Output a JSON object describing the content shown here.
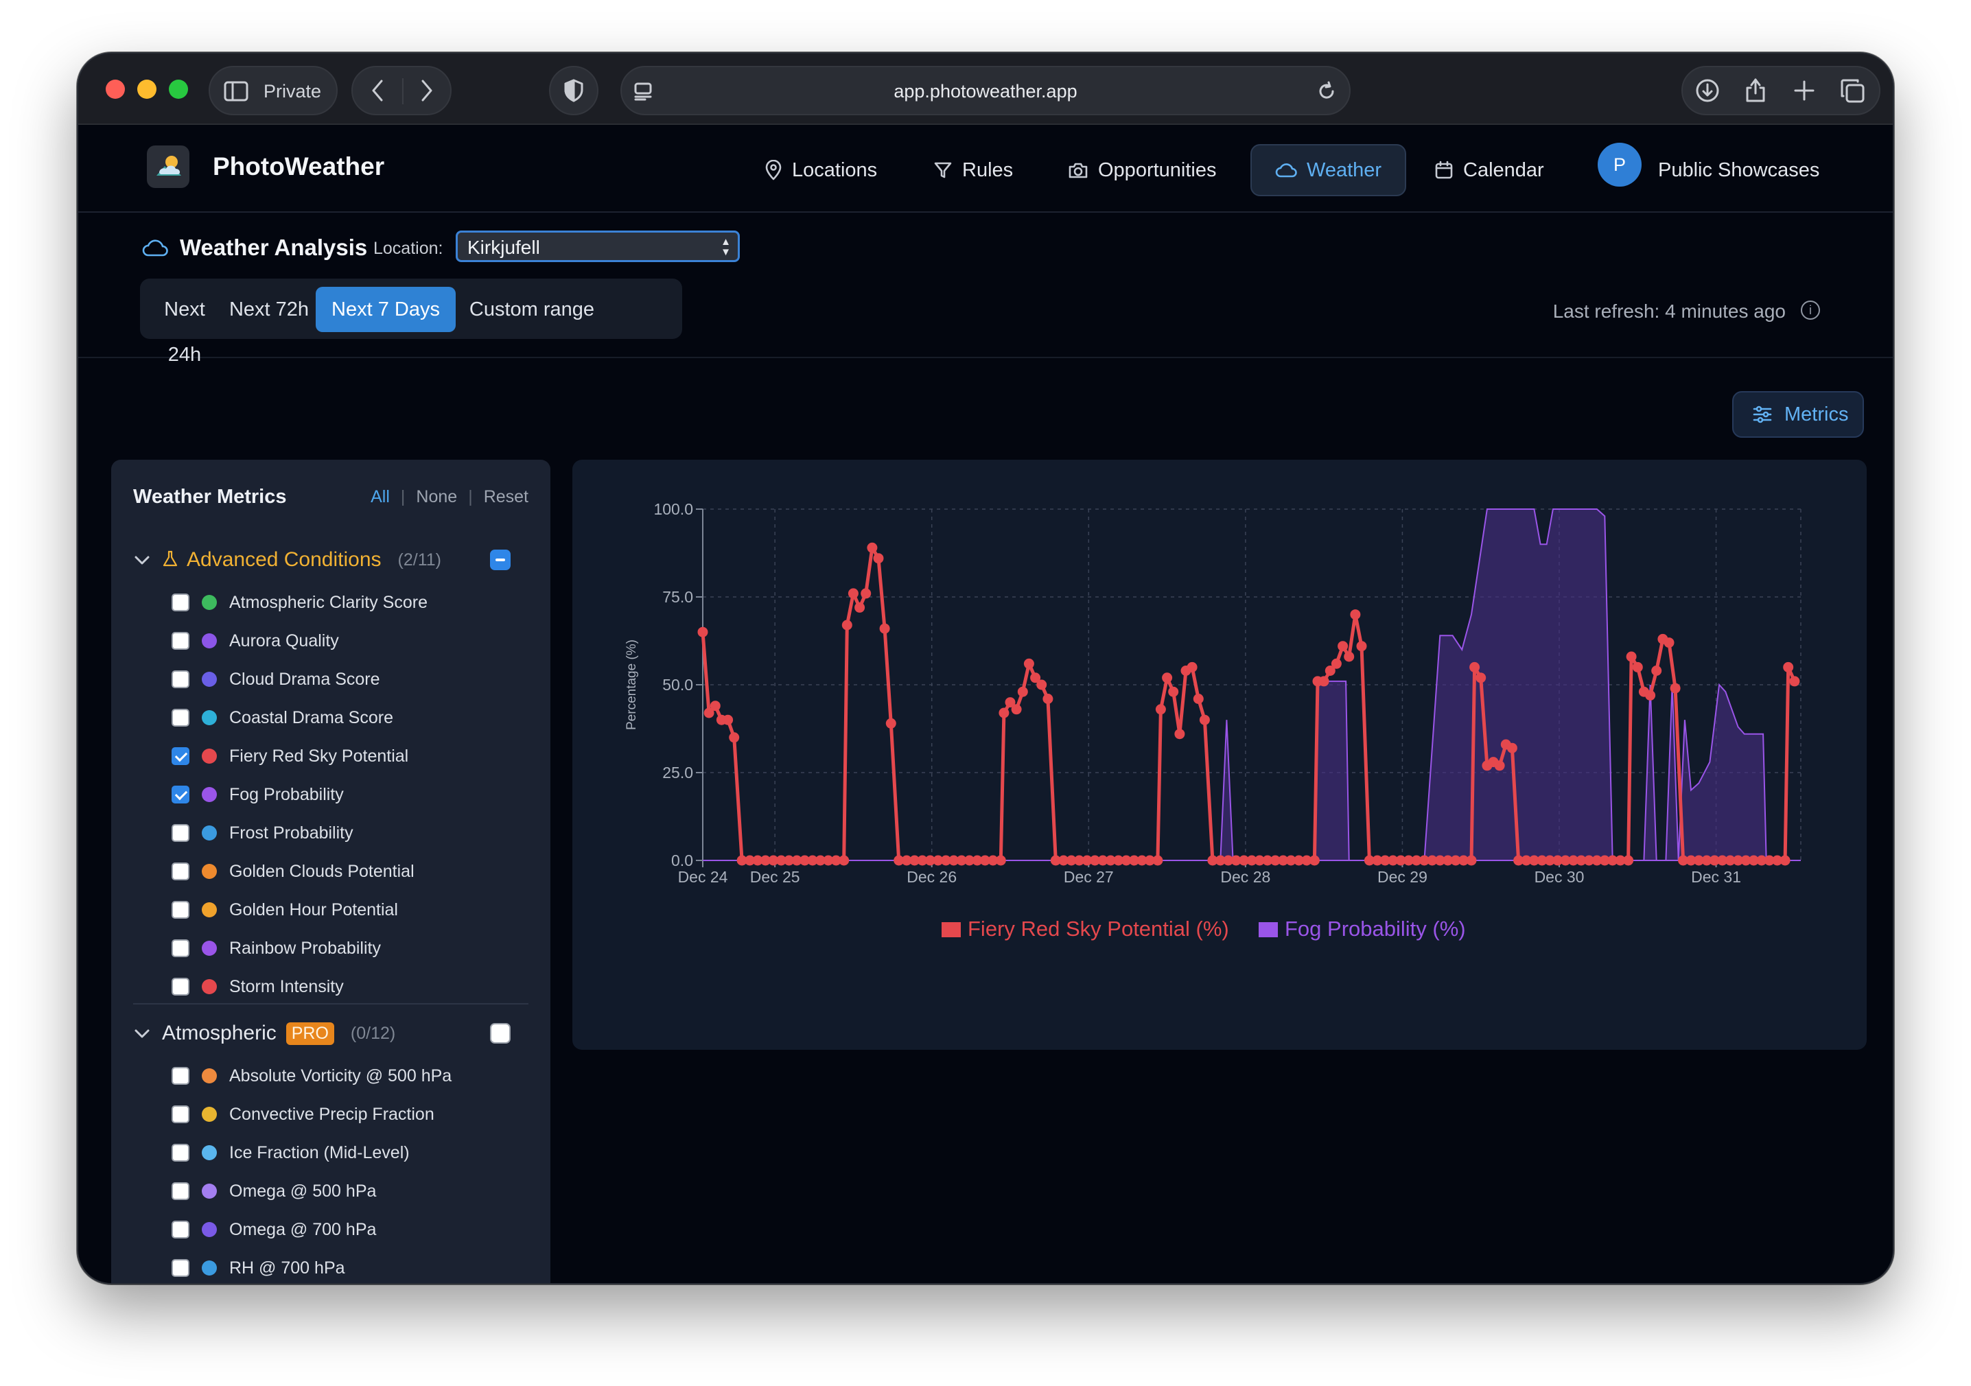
{
  "browser": {
    "private_label": "Private",
    "url": "app.photoweather.app"
  },
  "app": {
    "brand": "PhotoWeather",
    "nav": [
      {
        "label": "Locations",
        "icon": "map-pin-icon"
      },
      {
        "label": "Rules",
        "icon": "filter-icon"
      },
      {
        "label": "Opportunities",
        "icon": "camera-icon"
      },
      {
        "label": "Weather",
        "icon": "cloud-icon",
        "active": true
      },
      {
        "label": "Calendar",
        "icon": "calendar-icon"
      },
      {
        "label": "Public Showcases",
        "icon": "avatar",
        "avatar_letter": "P"
      }
    ]
  },
  "analysis": {
    "title": "Weather Analysis",
    "location_label": "Location:",
    "location_value": "Kirkjufell",
    "ranges": [
      "Next 24h",
      "Next 72h",
      "Next 7 Days",
      "Custom range"
    ],
    "active_range": "Next 7 Days",
    "last_refresh": "Last refresh: 4 minutes ago"
  },
  "metrics_button": "Metrics",
  "sidebar": {
    "title": "Weather Metrics",
    "links": [
      "All",
      "None",
      "Reset"
    ],
    "groups": [
      {
        "title": "Advanced Conditions",
        "count": "(2/11)",
        "color": "#f2b233",
        "badge": "",
        "items": [
          {
            "label": "Atmospheric Clarity Score",
            "color": "#3dbb5e",
            "checked": false
          },
          {
            "label": "Aurora Quality",
            "color": "#8c56e8",
            "checked": false
          },
          {
            "label": "Cloud Drama Score",
            "color": "#6a5fe6",
            "checked": false
          },
          {
            "label": "Coastal Drama Score",
            "color": "#2eb0d8",
            "checked": false
          },
          {
            "label": "Fiery Red Sky Potential",
            "color": "#e5484d",
            "checked": true
          },
          {
            "label": "Fog Probability",
            "color": "#9a55e8",
            "checked": true
          },
          {
            "label": "Frost Probability",
            "color": "#3b9be0",
            "checked": false
          },
          {
            "label": "Golden Clouds Potential",
            "color": "#ee8a2e",
            "checked": false
          },
          {
            "label": "Golden Hour Potential",
            "color": "#f0a22c",
            "checked": false
          },
          {
            "label": "Rainbow Probability",
            "color": "#9a55e8",
            "checked": false
          },
          {
            "label": "Storm Intensity",
            "color": "#e5484d",
            "checked": false
          }
        ]
      },
      {
        "title": "Atmospheric",
        "count": "(0/12)",
        "color": "#e6e9ef",
        "badge": "PRO",
        "items": [
          {
            "label": "Absolute Vorticity @ 500 hPa",
            "color": "#ee8a3e",
            "checked": false
          },
          {
            "label": "Convective Precip Fraction",
            "color": "#e8b530",
            "checked": false
          },
          {
            "label": "Ice Fraction (Mid-Level)",
            "color": "#5ab6ee",
            "checked": false
          },
          {
            "label": "Omega @ 500 hPa",
            "color": "#a37ef0",
            "checked": false
          },
          {
            "label": "Omega @ 700 hPa",
            "color": "#7a5ae6",
            "checked": false
          },
          {
            "label": "RH @ 700 hPa",
            "color": "#3b9be0",
            "checked": false
          }
        ]
      }
    ]
  },
  "chart_data": {
    "type": "line",
    "ylabel": "Percentage (%)",
    "xlabel": "",
    "ylim": [
      0,
      100
    ],
    "yticks": [
      "0.0",
      "25.0",
      "50.0",
      "75.0",
      "100.0"
    ],
    "xlim": [
      0,
      7
    ],
    "xticks": [
      {
        "x": 0,
        "label": "Dec 24"
      },
      {
        "x": 0.46,
        "label": "Dec 25"
      },
      {
        "x": 1.46,
        "label": "Dec 26"
      },
      {
        "x": 2.46,
        "label": "Dec 27"
      },
      {
        "x": 3.46,
        "label": "Dec 28"
      },
      {
        "x": 4.46,
        "label": "Dec 29"
      },
      {
        "x": 5.46,
        "label": "Dec 30"
      },
      {
        "x": 6.46,
        "label": "Dec 31"
      }
    ],
    "grid": true,
    "legend": "bottom",
    "series": [
      {
        "name": "Fiery Red Sky Potential (%)",
        "color": "#e5484d",
        "style": "line-markers",
        "points": [
          [
            0.0,
            65
          ],
          [
            0.04,
            42
          ],
          [
            0.08,
            44
          ],
          [
            0.12,
            40
          ],
          [
            0.16,
            40
          ],
          [
            0.2,
            35
          ],
          [
            0.25,
            0
          ],
          [
            0.3,
            0
          ],
          [
            0.35,
            0
          ],
          [
            0.4,
            0
          ],
          [
            0.45,
            0
          ],
          [
            0.5,
            0
          ],
          [
            0.55,
            0
          ],
          [
            0.6,
            0
          ],
          [
            0.65,
            0
          ],
          [
            0.7,
            0
          ],
          [
            0.75,
            0
          ],
          [
            0.8,
            0
          ],
          [
            0.85,
            0
          ],
          [
            0.9,
            0
          ],
          [
            0.92,
            67
          ],
          [
            0.96,
            76
          ],
          [
            1.0,
            72
          ],
          [
            1.04,
            76
          ],
          [
            1.08,
            89
          ],
          [
            1.12,
            86
          ],
          [
            1.16,
            66
          ],
          [
            1.2,
            39
          ],
          [
            1.25,
            0
          ],
          [
            1.3,
            0
          ],
          [
            1.35,
            0
          ],
          [
            1.4,
            0
          ],
          [
            1.45,
            0
          ],
          [
            1.5,
            0
          ],
          [
            1.55,
            0
          ],
          [
            1.6,
            0
          ],
          [
            1.65,
            0
          ],
          [
            1.7,
            0
          ],
          [
            1.75,
            0
          ],
          [
            1.8,
            0
          ],
          [
            1.85,
            0
          ],
          [
            1.9,
            0
          ],
          [
            1.92,
            42
          ],
          [
            1.96,
            45
          ],
          [
            2.0,
            43
          ],
          [
            2.04,
            48
          ],
          [
            2.08,
            56
          ],
          [
            2.12,
            52
          ],
          [
            2.16,
            50
          ],
          [
            2.2,
            46
          ],
          [
            2.25,
            0
          ],
          [
            2.3,
            0
          ],
          [
            2.35,
            0
          ],
          [
            2.4,
            0
          ],
          [
            2.45,
            0
          ],
          [
            2.5,
            0
          ],
          [
            2.55,
            0
          ],
          [
            2.6,
            0
          ],
          [
            2.65,
            0
          ],
          [
            2.7,
            0
          ],
          [
            2.75,
            0
          ],
          [
            2.8,
            0
          ],
          [
            2.85,
            0
          ],
          [
            2.9,
            0
          ],
          [
            2.92,
            43
          ],
          [
            2.96,
            52
          ],
          [
            3.0,
            48
          ],
          [
            3.04,
            36
          ],
          [
            3.08,
            54
          ],
          [
            3.12,
            55
          ],
          [
            3.16,
            46
          ],
          [
            3.2,
            40
          ],
          [
            3.25,
            0
          ],
          [
            3.3,
            0
          ],
          [
            3.35,
            0
          ],
          [
            3.4,
            0
          ],
          [
            3.45,
            0
          ],
          [
            3.5,
            0
          ],
          [
            3.55,
            0
          ],
          [
            3.6,
            0
          ],
          [
            3.65,
            0
          ],
          [
            3.7,
            0
          ],
          [
            3.75,
            0
          ],
          [
            3.8,
            0
          ],
          [
            3.85,
            0
          ],
          [
            3.9,
            0
          ],
          [
            3.92,
            51
          ],
          [
            3.96,
            51
          ],
          [
            4.0,
            54
          ],
          [
            4.04,
            56
          ],
          [
            4.08,
            61
          ],
          [
            4.12,
            58
          ],
          [
            4.16,
            70
          ],
          [
            4.2,
            61
          ],
          [
            4.25,
            0
          ],
          [
            4.3,
            0
          ],
          [
            4.35,
            0
          ],
          [
            4.4,
            0
          ],
          [
            4.45,
            0
          ],
          [
            4.5,
            0
          ],
          [
            4.55,
            0
          ],
          [
            4.6,
            0
          ],
          [
            4.65,
            0
          ],
          [
            4.7,
            0
          ],
          [
            4.75,
            0
          ],
          [
            4.8,
            0
          ],
          [
            4.85,
            0
          ],
          [
            4.9,
            0
          ],
          [
            4.92,
            55
          ],
          [
            4.96,
            52
          ],
          [
            5.0,
            27
          ],
          [
            5.04,
            28
          ],
          [
            5.08,
            27
          ],
          [
            5.12,
            33
          ],
          [
            5.16,
            32
          ],
          [
            5.2,
            0
          ],
          [
            5.25,
            0
          ],
          [
            5.3,
            0
          ],
          [
            5.35,
            0
          ],
          [
            5.4,
            0
          ],
          [
            5.45,
            0
          ],
          [
            5.5,
            0
          ],
          [
            5.55,
            0
          ],
          [
            5.6,
            0
          ],
          [
            5.65,
            0
          ],
          [
            5.7,
            0
          ],
          [
            5.75,
            0
          ],
          [
            5.8,
            0
          ],
          [
            5.85,
            0
          ],
          [
            5.9,
            0
          ],
          [
            5.92,
            58
          ],
          [
            5.96,
            55
          ],
          [
            6.0,
            48
          ],
          [
            6.04,
            47
          ],
          [
            6.08,
            54
          ],
          [
            6.12,
            63
          ],
          [
            6.16,
            62
          ],
          [
            6.2,
            49
          ],
          [
            6.25,
            0
          ],
          [
            6.3,
            0
          ],
          [
            6.35,
            0
          ],
          [
            6.4,
            0
          ],
          [
            6.45,
            0
          ],
          [
            6.5,
            0
          ],
          [
            6.55,
            0
          ],
          [
            6.6,
            0
          ],
          [
            6.65,
            0
          ],
          [
            6.7,
            0
          ],
          [
            6.75,
            0
          ],
          [
            6.8,
            0
          ],
          [
            6.85,
            0
          ],
          [
            6.9,
            0
          ],
          [
            6.92,
            55
          ],
          [
            6.96,
            51
          ]
        ]
      },
      {
        "name": "Fog Probability (%)",
        "color": "#9a55e8",
        "style": "area",
        "points": [
          [
            0,
            0
          ],
          [
            3.3,
            0
          ],
          [
            3.34,
            40
          ],
          [
            3.38,
            0
          ],
          [
            3.9,
            0
          ],
          [
            3.92,
            51
          ],
          [
            4.0,
            51
          ],
          [
            4.1,
            51
          ],
          [
            4.12,
            0
          ],
          [
            4.6,
            0
          ],
          [
            4.7,
            64
          ],
          [
            4.78,
            64
          ],
          [
            4.84,
            60
          ],
          [
            4.9,
            70
          ],
          [
            5.0,
            100
          ],
          [
            5.3,
            100
          ],
          [
            5.34,
            90
          ],
          [
            5.38,
            90
          ],
          [
            5.42,
            100
          ],
          [
            5.7,
            100
          ],
          [
            5.75,
            98
          ],
          [
            5.8,
            0
          ],
          [
            6.0,
            0
          ],
          [
            6.04,
            50
          ],
          [
            6.08,
            0
          ],
          [
            6.14,
            0
          ],
          [
            6.18,
            50
          ],
          [
            6.22,
            0
          ],
          [
            6.26,
            40
          ],
          [
            6.3,
            20
          ],
          [
            6.35,
            22
          ],
          [
            6.42,
            28
          ],
          [
            6.48,
            50
          ],
          [
            6.52,
            48
          ],
          [
            6.6,
            38
          ],
          [
            6.64,
            36
          ],
          [
            6.72,
            36
          ],
          [
            6.76,
            36
          ],
          [
            6.78,
            0
          ],
          [
            7.0,
            0
          ]
        ]
      }
    ]
  }
}
